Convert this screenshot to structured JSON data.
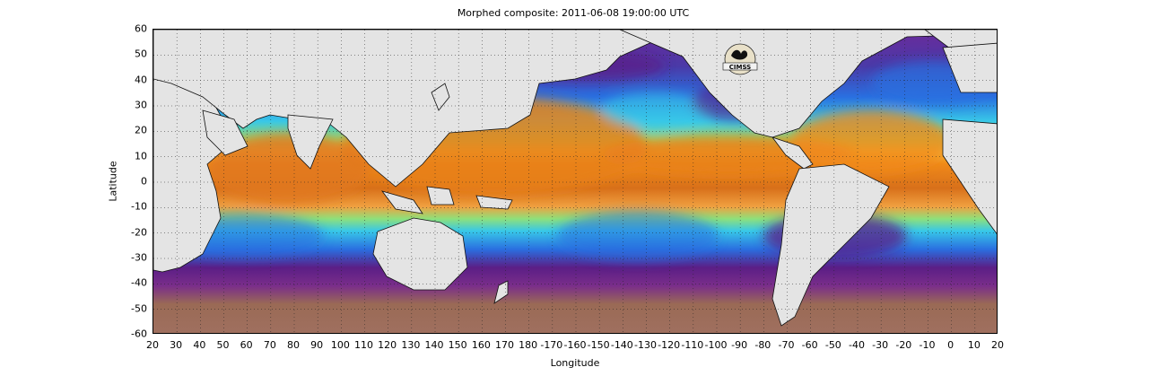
{
  "figure": {
    "title": "Morphed composite: 2011-06-08 19:00:00 UTC",
    "xlabel": "Longitude",
    "ylabel": "Latitude",
    "logo_text": "CIMSS"
  },
  "axes": {
    "y_ticks": [
      "60",
      "50",
      "40",
      "30",
      "20",
      "10",
      "0",
      "-10",
      "-20",
      "-30",
      "-40",
      "-50",
      "-60"
    ],
    "x_ticks": [
      "20",
      "30",
      "40",
      "50",
      "60",
      "70",
      "80",
      "90",
      "100",
      "110",
      "120",
      "130",
      "140",
      "150",
      "160",
      "170",
      "180",
      "-170",
      "-160",
      "-150",
      "-140",
      "-130",
      "-120",
      "-110",
      "-100",
      "-90",
      "-80",
      "-70",
      "-60",
      "-50",
      "-40",
      "-30",
      "-20",
      "-10",
      "0",
      "10",
      "20"
    ],
    "lat_range": [
      -60,
      60
    ],
    "lon_range_deg_east": [
      20,
      380
    ],
    "grid": "dotted"
  },
  "colors": {
    "land": "#e4e4e4",
    "coast": "#111111",
    "dry_purple": "#5b1e86",
    "mid_blue": "#2a6fe0",
    "cyan": "#38c8e8",
    "green": "#8ee07a",
    "yellow": "#f4e04a",
    "orange": "#f08a1a",
    "dark_orange": "#c25a10",
    "brown_south": "#9a6a55"
  }
}
